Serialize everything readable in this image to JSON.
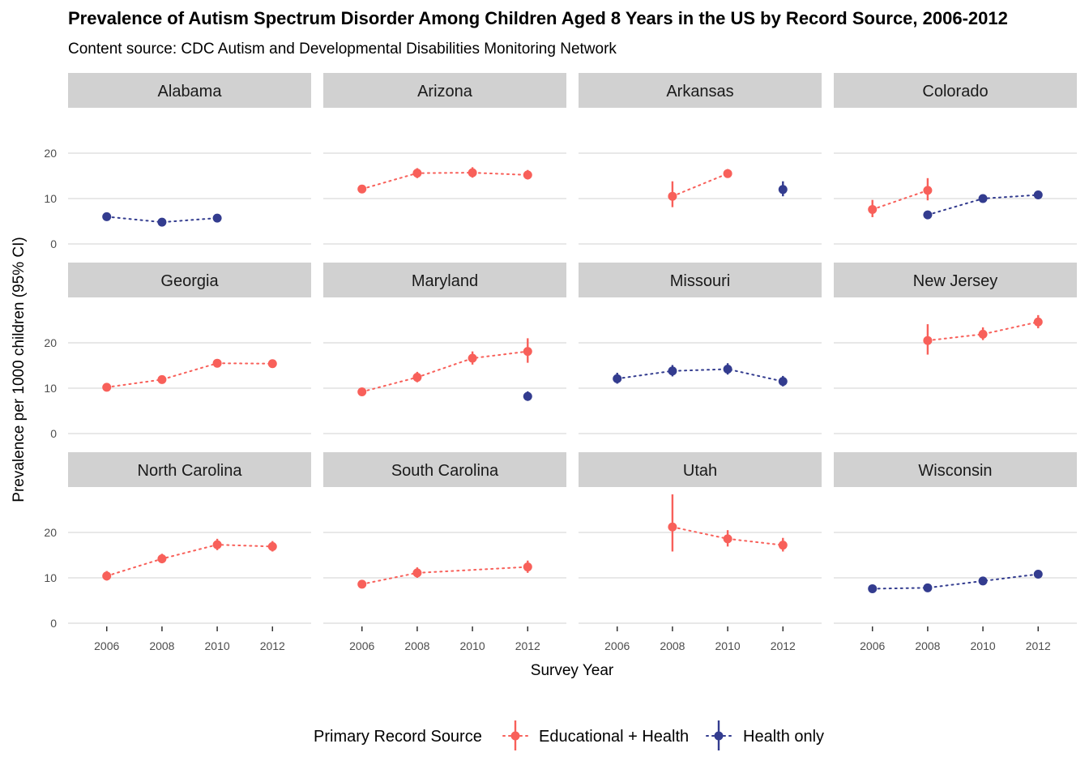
{
  "title": "Prevalence of Autism Spectrum Disorder Among Children Aged 8 Years in the US by Record Source, 2006-2012",
  "subtitle": "Content source: CDC Autism and Developmental Disabilities Monitoring Network",
  "colors": {
    "educational_health": "#f8605a",
    "health_only": "#333c8f",
    "strip": "#d1d1d1",
    "grid": "#d2d2d2"
  },
  "chart_data": {
    "type": "scatter",
    "title": "Prevalence of Autism Spectrum Disorder Among Children Aged 8 Years in the US by Record Source, 2006-2012",
    "subtitle": "Content source: CDC Autism and Developmental Disabilities Monitoring Network",
    "xlabel": "Survey Year",
    "ylabel": "Prevalence per 1000 children (95% CI)",
    "x_ticks": [
      2006,
      2008,
      2010,
      2012
    ],
    "y_ticks": [
      0,
      10,
      20
    ],
    "xlim": [
      2004.6,
      2013.4
    ],
    "ylim": [
      0,
      27
    ],
    "grid": true,
    "legend": {
      "title": "Primary Record Source",
      "position": "bottom",
      "entries": [
        {
          "key": "eh",
          "label": "Educational + Health",
          "color": "#f8605a"
        },
        {
          "key": "ho",
          "label": "Health only",
          "color": "#333c8f"
        }
      ]
    },
    "panels": [
      {
        "state": "Alabama",
        "series": [
          {
            "source": "ho",
            "points": [
              {
                "x": 2006,
                "y": 6.0,
                "lo": 5.5,
                "hi": 6.6
              },
              {
                "x": 2008,
                "y": 4.8,
                "lo": 4.3,
                "hi": 5.4
              },
              {
                "x": 2010,
                "y": 5.7,
                "lo": 5.1,
                "hi": 6.4
              }
            ]
          }
        ]
      },
      {
        "state": "Arizona",
        "series": [
          {
            "source": "eh",
            "points": [
              {
                "x": 2006,
                "y": 12.1,
                "lo": 11.3,
                "hi": 13.0
              },
              {
                "x": 2008,
                "y": 15.6,
                "lo": 14.5,
                "hi": 16.7
              },
              {
                "x": 2010,
                "y": 15.7,
                "lo": 14.6,
                "hi": 16.9
              },
              {
                "x": 2012,
                "y": 15.2,
                "lo": 14.2,
                "hi": 16.3
              }
            ]
          }
        ]
      },
      {
        "state": "Arkansas",
        "series": [
          {
            "source": "eh",
            "points": [
              {
                "x": 2008,
                "y": 10.5,
                "lo": 8.1,
                "hi": 13.8
              },
              {
                "x": 2010,
                "y": 15.5,
                "lo": 14.6,
                "hi": 16.5
              }
            ]
          },
          {
            "source": "ho",
            "points": [
              {
                "x": 2012,
                "y": 12.0,
                "lo": 10.5,
                "hi": 13.8
              }
            ]
          }
        ]
      },
      {
        "state": "Colorado",
        "series": [
          {
            "source": "eh",
            "points": [
              {
                "x": 2006,
                "y": 7.6,
                "lo": 5.9,
                "hi": 9.7
              },
              {
                "x": 2008,
                "y": 11.8,
                "lo": 9.6,
                "hi": 14.5
              }
            ]
          },
          {
            "source": "ho",
            "points": [
              {
                "x": 2008,
                "y": 6.4,
                "lo": 5.9,
                "hi": 6.9
              },
              {
                "x": 2010,
                "y": 10.0,
                "lo": 9.4,
                "hi": 10.6
              },
              {
                "x": 2012,
                "y": 10.8,
                "lo": 10.2,
                "hi": 11.5
              }
            ]
          }
        ]
      },
      {
        "state": "Georgia",
        "series": [
          {
            "source": "eh",
            "points": [
              {
                "x": 2006,
                "y": 10.2,
                "lo": 9.6,
                "hi": 10.8
              },
              {
                "x": 2008,
                "y": 11.9,
                "lo": 11.3,
                "hi": 12.6
              },
              {
                "x": 2010,
                "y": 15.5,
                "lo": 14.8,
                "hi": 16.3
              },
              {
                "x": 2012,
                "y": 15.4,
                "lo": 14.7,
                "hi": 16.2
              }
            ]
          }
        ]
      },
      {
        "state": "Maryland",
        "series": [
          {
            "source": "eh",
            "points": [
              {
                "x": 2006,
                "y": 9.2,
                "lo": 8.4,
                "hi": 10.1
              },
              {
                "x": 2008,
                "y": 12.4,
                "lo": 11.3,
                "hi": 13.6
              },
              {
                "x": 2010,
                "y": 16.6,
                "lo": 15.2,
                "hi": 18.1
              },
              {
                "x": 2012,
                "y": 18.1,
                "lo": 15.6,
                "hi": 21.0
              }
            ]
          },
          {
            "source": "ho",
            "points": [
              {
                "x": 2012,
                "y": 8.2,
                "lo": 7.2,
                "hi": 9.3
              }
            ]
          }
        ]
      },
      {
        "state": "Missouri",
        "series": [
          {
            "source": "ho",
            "points": [
              {
                "x": 2006,
                "y": 12.1,
                "lo": 11.0,
                "hi": 13.4
              },
              {
                "x": 2008,
                "y": 13.8,
                "lo": 12.6,
                "hi": 15.1
              },
              {
                "x": 2010,
                "y": 14.2,
                "lo": 13.0,
                "hi": 15.5
              },
              {
                "x": 2012,
                "y": 11.5,
                "lo": 10.4,
                "hi": 12.7
              }
            ]
          }
        ]
      },
      {
        "state": "New Jersey",
        "series": [
          {
            "source": "eh",
            "points": [
              {
                "x": 2008,
                "y": 20.5,
                "lo": 17.4,
                "hi": 24.1
              },
              {
                "x": 2010,
                "y": 21.9,
                "lo": 20.6,
                "hi": 23.4
              },
              {
                "x": 2012,
                "y": 24.6,
                "lo": 23.2,
                "hi": 26.1
              }
            ]
          }
        ]
      },
      {
        "state": "North Carolina",
        "series": [
          {
            "source": "eh",
            "points": [
              {
                "x": 2006,
                "y": 10.4,
                "lo": 9.4,
                "hi": 11.5
              },
              {
                "x": 2008,
                "y": 14.2,
                "lo": 13.2,
                "hi": 15.3
              },
              {
                "x": 2010,
                "y": 17.3,
                "lo": 16.1,
                "hi": 18.6
              },
              {
                "x": 2012,
                "y": 16.9,
                "lo": 15.8,
                "hi": 18.1
              }
            ]
          }
        ]
      },
      {
        "state": "South Carolina",
        "series": [
          {
            "source": "eh",
            "points": [
              {
                "x": 2006,
                "y": 8.6,
                "lo": 7.8,
                "hi": 9.5
              },
              {
                "x": 2008,
                "y": 11.1,
                "lo": 10.0,
                "hi": 12.3
              },
              {
                "x": 2012,
                "y": 12.4,
                "lo": 11.1,
                "hi": 13.8
              }
            ]
          }
        ]
      },
      {
        "state": "Utah",
        "series": [
          {
            "source": "eh",
            "points": [
              {
                "x": 2008,
                "y": 21.2,
                "lo": 15.8,
                "hi": 28.4
              },
              {
                "x": 2010,
                "y": 18.6,
                "lo": 16.9,
                "hi": 20.5
              },
              {
                "x": 2012,
                "y": 17.2,
                "lo": 15.8,
                "hi": 18.8
              }
            ]
          }
        ]
      },
      {
        "state": "Wisconsin",
        "series": [
          {
            "source": "ho",
            "points": [
              {
                "x": 2006,
                "y": 7.6,
                "lo": 7.0,
                "hi": 8.3
              },
              {
                "x": 2008,
                "y": 7.8,
                "lo": 7.2,
                "hi": 8.5
              },
              {
                "x": 2010,
                "y": 9.3,
                "lo": 8.6,
                "hi": 10.1
              },
              {
                "x": 2012,
                "y": 10.8,
                "lo": 10.0,
                "hi": 11.6
              }
            ]
          }
        ]
      }
    ]
  }
}
